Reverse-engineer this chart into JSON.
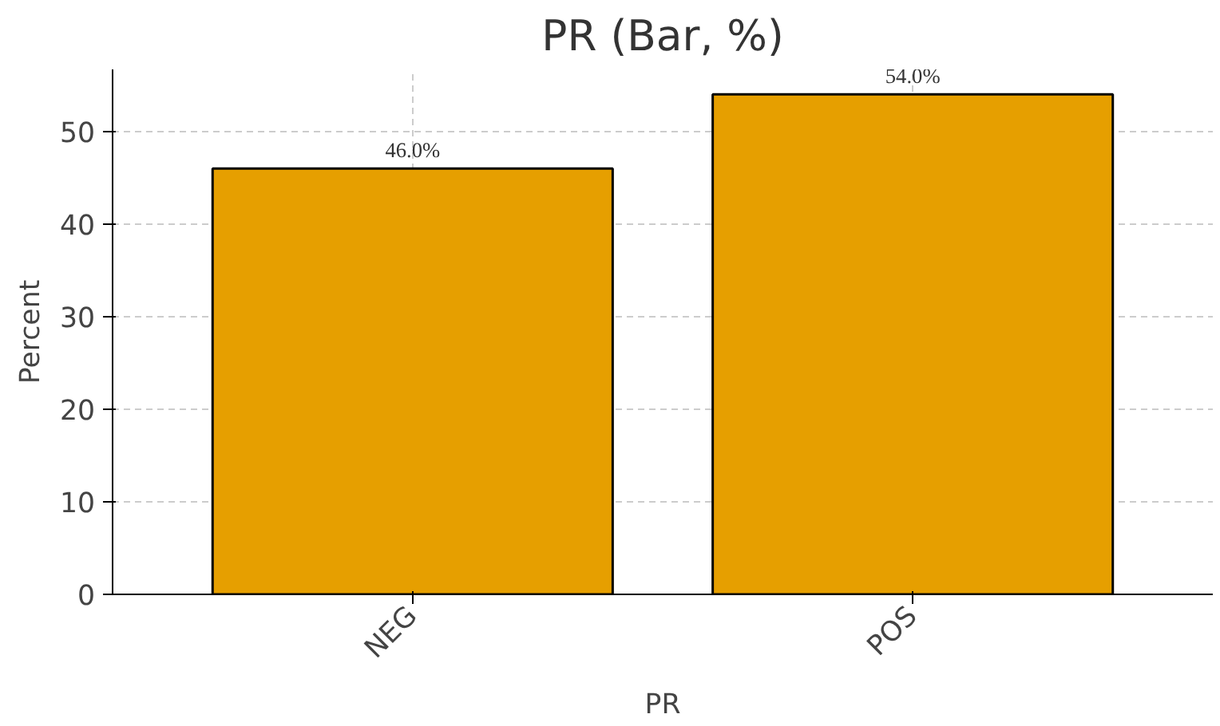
{
  "chart_data": {
    "type": "bar",
    "title": "PR (Bar, %)",
    "xlabel": "PR",
    "ylabel": "Percent",
    "categories": [
      "NEG",
      "POS"
    ],
    "values": [
      46.0,
      54.0
    ],
    "color": "#e69f00",
    "value_labels": [
      "46.0%",
      "54.0%"
    ],
    "ylim": [
      0,
      56.7
    ],
    "yticks": [
      0,
      10,
      20,
      30,
      40,
      50
    ],
    "grid": true
  }
}
